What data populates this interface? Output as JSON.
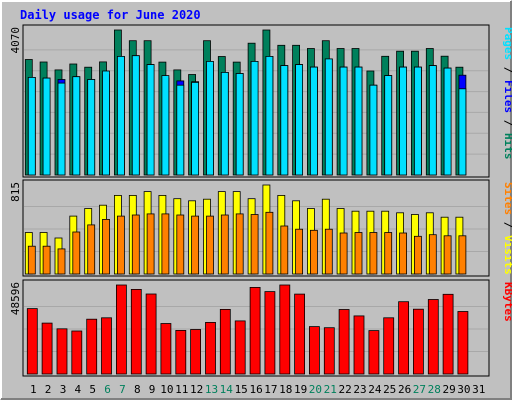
{
  "chart_data": {
    "type": "bar",
    "title": "Daily usage for June 2020",
    "colors": {
      "background": "#C0C0C0",
      "title": "#0000FF",
      "hits": "#00805C",
      "files": "#0000FF",
      "pages": "#00E0FF",
      "visits": "#FFFF00",
      "sites": "#FF8000",
      "kbytes": "#FF0000",
      "weekend_label": "#00805C",
      "weekday_label": "#000000"
    },
    "days": [
      "1",
      "2",
      "3",
      "4",
      "5",
      "6",
      "7",
      "8",
      "9",
      "10",
      "11",
      "12",
      "13",
      "14",
      "15",
      "16",
      "17",
      "18",
      "19",
      "20",
      "21",
      "22",
      "23",
      "24",
      "25",
      "26",
      "27",
      "28",
      "29",
      "30",
      "31"
    ],
    "weekend_days": [
      6,
      7,
      13,
      14,
      20,
      21,
      27,
      28
    ],
    "panels": [
      {
        "id": "hits-files-pages",
        "max_label": "4070",
        "ymax": 4070,
        "side_label": [
          {
            "text": "Pages",
            "color": "#00E0FF"
          },
          {
            "text": " / ",
            "color": "#000000"
          },
          {
            "text": "Files",
            "color": "#0000FF"
          },
          {
            "text": " / ",
            "color": "#000000"
          },
          {
            "text": "Hits",
            "color": "#00805C"
          }
        ],
        "series": [
          {
            "name": "Hits",
            "color": "#00805C",
            "values": [
              3243,
              3172,
              2950,
              3115,
              3027,
              3175,
              4070,
              3770,
              3770,
              3170,
              2950,
              2820,
              3770,
              3325,
              3170,
              3700,
              4070,
              3640,
              3640,
              3550,
              3770,
              3550,
              3550,
              2920,
              3333,
              3475,
              3475,
              3550,
              3335,
              3027,
              null
            ]
          },
          {
            "name": "Files",
            "color": "#0000FF",
            "values": [
              2740,
              2720,
              2680,
              2760,
              2680,
              2820,
              3330,
              3350,
              3100,
              2720,
              2640,
              2620,
              3100,
              2880,
              2850,
              3190,
              3330,
              3070,
              3100,
              3030,
              3260,
              3030,
              3030,
              2520,
              2790,
              3030,
              3030,
              3070,
              3000,
              2800,
              null
            ]
          },
          {
            "name": "Pages",
            "color": "#00E0FF",
            "values": [
              2740,
              2720,
              2580,
              2760,
              2680,
              2920,
              3330,
              3350,
              3100,
              2790,
              2520,
              2600,
              3190,
              2880,
              2850,
              3190,
              3330,
              3070,
              3100,
              3030,
              3260,
              3030,
              3030,
              2520,
              2790,
              3030,
              3030,
              3070,
              3000,
              2420,
              null
            ]
          }
        ]
      },
      {
        "id": "visits-sites",
        "max_label": "815",
        "ymax": 815,
        "side_label": [
          {
            "text": "Sites",
            "color": "#FF8000"
          },
          {
            "text": " / ",
            "color": "#000000"
          },
          {
            "text": "Visits",
            "color": "#FFFF00"
          }
        ],
        "series": [
          {
            "name": "Visits",
            "color": "#FFFF00",
            "values": [
              380,
              380,
              330,
              530,
              600,
              630,
              720,
              720,
              755,
              720,
              690,
              670,
              685,
              755,
              755,
              690,
              815,
              720,
              670,
              600,
              685,
              600,
              575,
              575,
              575,
              560,
              545,
              560,
              520,
              520,
              null
            ]
          },
          {
            "name": "Sites",
            "color": "#FF8000",
            "values": [
              255,
              255,
              230,
              385,
              450,
              500,
              530,
              540,
              550,
              550,
              540,
              530,
              530,
              540,
              550,
              545,
              565,
              440,
              410,
              400,
              410,
              375,
              380,
              380,
              380,
              375,
              345,
              360,
              350,
              350,
              null
            ]
          }
        ]
      },
      {
        "id": "kbytes",
        "max_label": "48596",
        "ymax": 48596,
        "side_label": [
          {
            "text": "KBytes",
            "color": "#FF0000"
          }
        ],
        "series": [
          {
            "name": "KBytes",
            "color": "#FF0000",
            "values": [
              35700,
              27800,
              24700,
              23500,
              29900,
              30700,
              48596,
              46200,
              43700,
              27600,
              23800,
              24300,
              28200,
              35300,
              29000,
              47300,
              45000,
              48596,
              43600,
              25900,
              25300,
              35200,
              31700,
              23700,
              30700,
              39500,
              35400,
              40700,
              43500,
              34100,
              null
            ]
          }
        ]
      }
    ]
  }
}
